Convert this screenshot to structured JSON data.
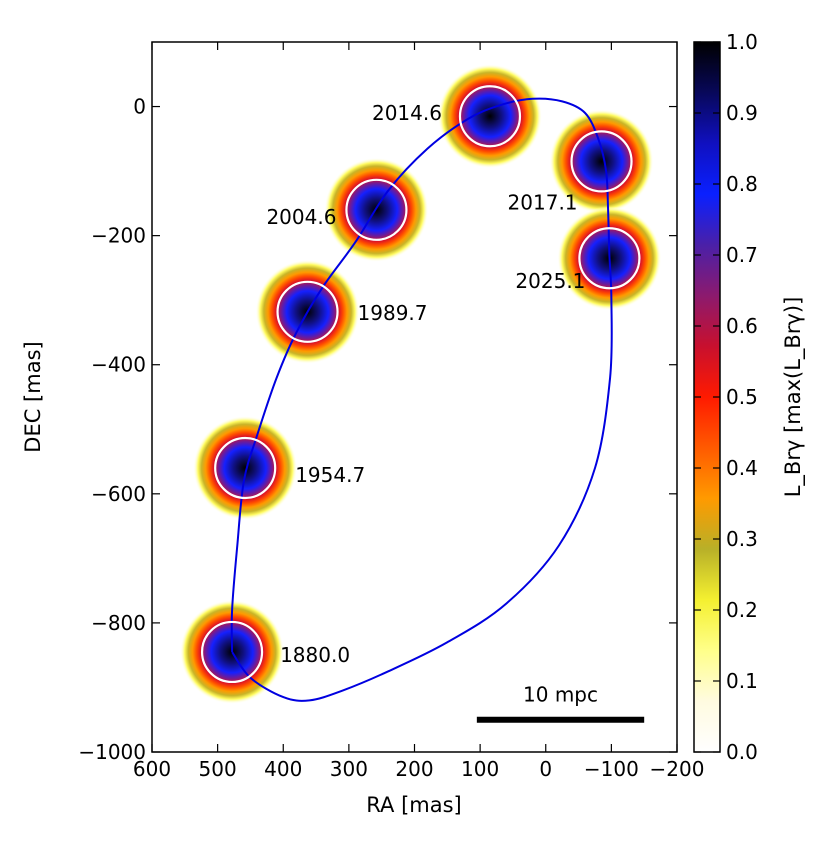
{
  "chart_data": {
    "type": "scatter",
    "title": "",
    "xlabel": "RA [mas]",
    "ylabel": "DEC [mas]",
    "xlim": [
      600,
      -200
    ],
    "ylim": [
      -1000,
      100
    ],
    "xticks": [
      "600",
      "500",
      "400",
      "300",
      "200",
      "100",
      "0",
      "−100",
      "−200"
    ],
    "yticks": [
      "−1000",
      "−800",
      "−600",
      "−400",
      "−200",
      "0"
    ],
    "epochs": [
      {
        "label": "1880.0",
        "ra": 478,
        "dec": -845
      },
      {
        "label": "1954.7",
        "ra": 458,
        "dec": -560
      },
      {
        "label": "1989.7",
        "ra": 363,
        "dec": -318
      },
      {
        "label": "2004.6",
        "ra": 258,
        "dec": -160
      },
      {
        "label": "2014.6",
        "ra": 85,
        "dec": -15
      },
      {
        "label": "2017.1",
        "ra": -85,
        "dec": -85
      },
      {
        "label": "2025.1",
        "ra": -97,
        "dec": -235
      }
    ],
    "orbit": {
      "description": "elliptical orbit through emission peaks",
      "points": [
        [
          478,
          -845
        ],
        [
          450,
          -885
        ],
        [
          400,
          -915
        ],
        [
          360,
          -920
        ],
        [
          310,
          -905
        ],
        [
          240,
          -875
        ],
        [
          150,
          -830
        ],
        [
          60,
          -770
        ],
        [
          -20,
          -680
        ],
        [
          -75,
          -560
        ],
        [
          -98,
          -420
        ],
        [
          -100,
          -300
        ],
        [
          -97,
          -230
        ],
        [
          -95,
          -160
        ],
        [
          -92,
          -100
        ],
        [
          -80,
          -50
        ],
        [
          -60,
          -10
        ],
        [
          -25,
          8
        ],
        [
          20,
          12
        ],
        [
          70,
          2
        ],
        [
          120,
          -20
        ],
        [
          180,
          -65
        ],
        [
          240,
          -130
        ],
        [
          290,
          -210
        ],
        [
          340,
          -280
        ],
        [
          380,
          -350
        ],
        [
          410,
          -420
        ],
        [
          440,
          -510
        ],
        [
          460,
          -580
        ],
        [
          470,
          -680
        ],
        [
          478,
          -780
        ],
        [
          478,
          -845
        ]
      ]
    },
    "scalebar": {
      "label": "10 mpc",
      "ra_start": 105,
      "ra_end": -150,
      "dec": -950
    },
    "colorbar": {
      "label": "L_Brγ [max(L_Brγ)]",
      "min": 0.0,
      "max": 1.0,
      "ticks": [
        "0.0",
        "0.1",
        "0.2",
        "0.3",
        "0.4",
        "0.5",
        "0.6",
        "0.7",
        "0.8",
        "0.9",
        "1.0"
      ],
      "colormap": [
        "#ffffff",
        "#fffbe0",
        "#ffff8a",
        "#f4f030",
        "#b8b028",
        "#ff9a00",
        "#ff5a00",
        "#ff1a00",
        "#c8102e",
        "#8c1a6e",
        "#4a20a8",
        "#0a20ff",
        "#1010c0",
        "#08085a",
        "#000000"
      ]
    }
  }
}
